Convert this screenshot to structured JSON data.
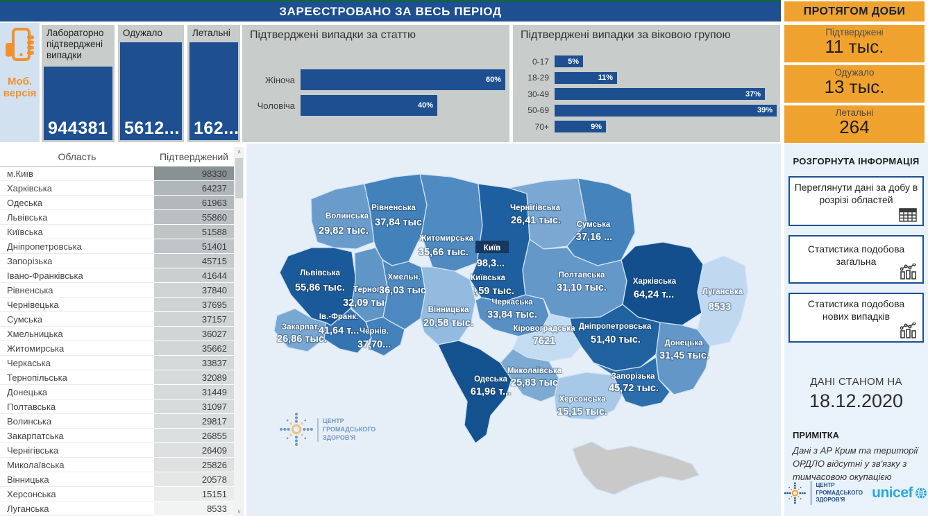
{
  "colors": {
    "primary_blue": "#1d4f91",
    "accent_orange": "#f0a22f",
    "panel_gray": "#c8cccb",
    "teal_strip": "#14604e"
  },
  "header": {
    "title": "ЗАРЕЄСТРОВАНО ЗА ВЕСЬ ПЕРІОД",
    "daily_panel_title": "ПРОТЯГОМ ДОБИ"
  },
  "mobile": {
    "label_line1": "Моб.",
    "label_line2": "версія"
  },
  "kpi_cards": [
    {
      "label": "Лабораторно підтверджені випадки",
      "value": "944381"
    },
    {
      "label": "Одужало",
      "value": "5612..."
    },
    {
      "label": "Летальні",
      "value": "162..."
    }
  ],
  "daily_cards": [
    {
      "label": "Підтверджені",
      "value": "11 тыс."
    },
    {
      "label": "Одужало",
      "value": "13 тыс."
    },
    {
      "label": "Летальні",
      "value": "264"
    }
  ],
  "chart_data": [
    {
      "type": "bar",
      "orientation": "horizontal",
      "title": "Підтверджені випадки за статтю",
      "categories": [
        "Жіноча",
        "Чоловіча"
      ],
      "values": [
        60,
        40
      ],
      "labels": [
        "60%",
        "40%"
      ],
      "unit": "%"
    },
    {
      "type": "bar",
      "orientation": "horizontal",
      "title": "Підтверджені випадки за віковою групою",
      "categories": [
        "0-17",
        "18-29",
        "30-49",
        "50-69",
        "70+"
      ],
      "values": [
        5,
        11,
        37,
        39,
        9
      ],
      "labels": [
        "5%",
        "11%",
        "37%",
        "39%",
        "9%"
      ],
      "unit": "%"
    }
  ],
  "table": {
    "columns": [
      "Область",
      "Підтверджений"
    ],
    "rows": [
      [
        "м.Київ",
        98330
      ],
      [
        "Харківська",
        64237
      ],
      [
        "Одеська",
        61963
      ],
      [
        "Львівська",
        55860
      ],
      [
        "Київська",
        51588
      ],
      [
        "Дніпропетровська",
        51401
      ],
      [
        "Запорізька",
        45715
      ],
      [
        "Івано-Франківська",
        41644
      ],
      [
        "Рівненська",
        37840
      ],
      [
        "Чернівецька",
        37695
      ],
      [
        "Сумська",
        37157
      ],
      [
        "Хмельницька",
        36027
      ],
      [
        "Житомирська",
        35662
      ],
      [
        "Черкаська",
        33837
      ],
      [
        "Тернопільська",
        32089
      ],
      [
        "Донецька",
        31449
      ],
      [
        "Полтавська",
        31097
      ],
      [
        "Волинська",
        29817
      ],
      [
        "Закарпатська",
        26855
      ],
      [
        "Чернігівська",
        26409
      ],
      [
        "Миколаївська",
        25826
      ],
      [
        "Вінницька",
        20578
      ],
      [
        "Херсонська",
        15151
      ],
      [
        "Луганська",
        8533
      ]
    ]
  },
  "map": {
    "regions": [
      {
        "id": "volyn",
        "name": "Волинська",
        "value": "29,82 тыс.",
        "fill": "#6a9ccb"
      },
      {
        "id": "rivne",
        "name": "Рівненська",
        "value": "37,84 тыс.",
        "fill": "#4381bb"
      },
      {
        "id": "zhytomyr",
        "name": "Житомирська",
        "value": "35,66 тыс.",
        "fill": "#4f8ac0"
      },
      {
        "id": "kyivska",
        "name": "Київська",
        "value": "51,59 тыс.",
        "fill": "#1e5f9f"
      },
      {
        "id": "chernihiv",
        "name": "Чернігівська",
        "value": "26,41 тыс.",
        "fill": "#7aa8d2"
      },
      {
        "id": "sumy",
        "name": "Сумська",
        "value": "37,16 ...",
        "fill": "#4583bc"
      },
      {
        "id": "lviv",
        "name": "Львівська",
        "value": "55,86 тыс.",
        "fill": "#1b5a9a"
      },
      {
        "id": "ternopil",
        "name": "Терноп.",
        "value": "32,09 тыс.",
        "fill": "#6095c7"
      },
      {
        "id": "khmelnytskyi",
        "name": "Хмельн.",
        "value": "36,03 тыс.",
        "fill": "#4d89c0"
      },
      {
        "id": "vinnytsia",
        "name": "Вінницька",
        "value": "20,58 тыс.",
        "fill": "#93badf"
      },
      {
        "id": "cherkasy",
        "name": "Черкаська",
        "value": "33,84 тыс.",
        "fill": "#588fc4"
      },
      {
        "id": "poltava",
        "name": "Полтавська",
        "value": "31,10 тыс.",
        "fill": "#6498c9"
      },
      {
        "id": "kharkiv",
        "name": "Харківська",
        "value": "64,24 т...",
        "fill": "#124f8c"
      },
      {
        "id": "luhansk",
        "name": "Луганська",
        "value": "8533",
        "fill": "#c0d9f0"
      },
      {
        "id": "donetsk",
        "name": "Донецька",
        "value": "31,45 тыс.",
        "fill": "#6297c8"
      },
      {
        "id": "dnipro",
        "name": "Дніпропетровська",
        "value": "51,40 тыс.",
        "fill": "#20619f"
      },
      {
        "id": "kirovohrad",
        "name": "Кіровоградська",
        "value": "7621",
        "fill": "#c4dcf1"
      },
      {
        "id": "zakarpattia",
        "name": "Закарпат.",
        "value": "26,86 тыс.",
        "fill": "#78a7d1"
      },
      {
        "id": "ivfrank",
        "name": "Ів.-Франк.",
        "value": "41,64 т...",
        "fill": "#3474b2"
      },
      {
        "id": "chernivtsi",
        "name": "Чернів.",
        "value": "37,70...",
        "fill": "#4382bb"
      },
      {
        "id": "odesa",
        "name": "Одеська",
        "value": "61,96 т...",
        "fill": "#14528f"
      },
      {
        "id": "mykolaiv",
        "name": "Миколаївська",
        "value": "25,83 тыс.",
        "fill": "#7daad3"
      },
      {
        "id": "kherson",
        "name": "Херсонська",
        "value": "15,15 тыс.",
        "fill": "#a7c8e7"
      },
      {
        "id": "zaporizhzhia",
        "name": "Запорізька",
        "value": "45,72 тыс.",
        "fill": "#2c6dab"
      },
      {
        "id": "kyiv_city",
        "name": "Київ",
        "value": "98,3...",
        "fill": "#17375e"
      },
      {
        "id": "crimea",
        "name": "",
        "value": "",
        "fill": "#c9c9c9"
      }
    ],
    "watermark_lines": [
      "ЦЕНТР",
      "ГРОМАДСЬКОГО",
      "ЗДОРОВ'Я"
    ]
  },
  "sidebar": {
    "title": "РОЗГОРНУТА ІНФОРМАЦІЯ",
    "buttons": [
      {
        "label": "Переглянути дані за добу в розрізі областей",
        "icon": "table-icon"
      },
      {
        "label": "Статистика подобова загальна",
        "icon": "chart-icon"
      },
      {
        "label": "Статистика подобова нових випадків",
        "icon": "chart-icon"
      }
    ],
    "date_caption": "ДАНІ СТАНОМ НА",
    "date": "18.12.2020",
    "note_title": "ПРИМІТКА",
    "note": "Дані з АР Крим та території ОРДЛО відсутні у зв'язку з тимчасовою окупацією"
  },
  "logos": {
    "phc_lines": [
      "ЦЕНТР",
      "ГРОМАДСЬКОГО",
      "ЗДОРОВ'Я"
    ],
    "unicef": "unicef"
  }
}
